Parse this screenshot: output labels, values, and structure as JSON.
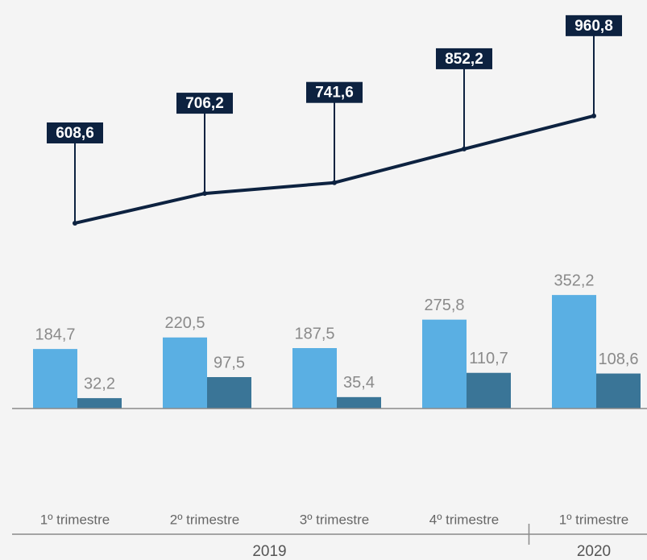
{
  "chart_data": {
    "type": "bar",
    "categories": [
      "1º trimestre",
      "2º trimestre",
      "3º trimestre",
      "4º trimestre",
      "1º trimestre"
    ],
    "x_groups": [
      {
        "label": "2019",
        "span": 4
      },
      {
        "label": "2020",
        "span": 1
      }
    ],
    "ylim": [
      0,
      1200
    ],
    "y2lim": [
      0,
      1270
    ],
    "series": [
      {
        "type": "bar",
        "color": "#5aafe3",
        "values": [
          184.7,
          220.5,
          187.5,
          275.8,
          352.2
        ],
        "value_labels": [
          "184,7",
          "220,5",
          "187,5",
          "275,8",
          "352,2"
        ]
      },
      {
        "type": "bar",
        "color": "#3a7597",
        "values": [
          32.2,
          97.5,
          35.4,
          110.7,
          108.6
        ],
        "value_labels": [
          "32,2",
          "97,5",
          "35,4",
          "110,7",
          "108,6"
        ]
      },
      {
        "type": "line",
        "axis": "y2",
        "color": "#0d2240",
        "values": [
          608.6,
          706.2,
          741.6,
          852.2,
          960.8
        ],
        "value_labels": [
          "608,6",
          "706,2",
          "741,6",
          "852,2",
          "960,8"
        ]
      }
    ]
  }
}
